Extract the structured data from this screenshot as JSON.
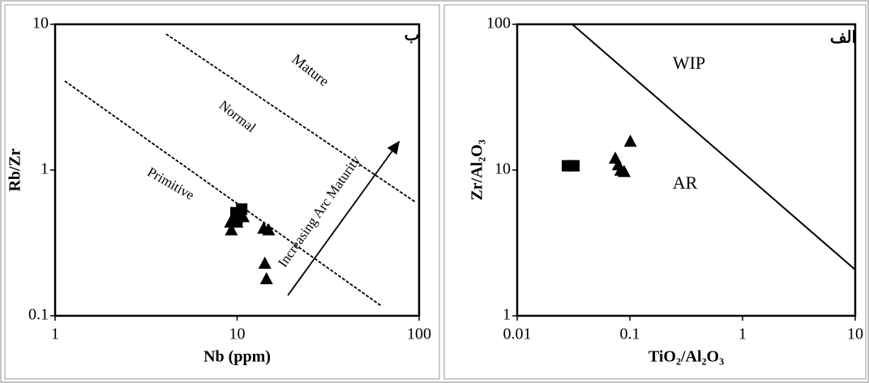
{
  "chart_data": [
    {
      "type": "scatter",
      "panel_label": "ب",
      "xlabel": "Nb (ppm)",
      "ylabel": "Rb/Zr",
      "xlog": true,
      "ylog": true,
      "xlim": [
        1,
        100
      ],
      "ylim": [
        0.1,
        10
      ],
      "xticks": [
        1,
        10,
        100
      ],
      "yticks": [
        0.1,
        1,
        10
      ],
      "series": [
        {
          "marker": "square",
          "color": "#000000",
          "x": [
            9.85,
            10.6,
            10
          ],
          "values": [
            0.51,
            0.54,
            0.46
          ]
        },
        {
          "marker": "triangle",
          "color": "#000000",
          "x": [
            9.2,
            10,
            10.8,
            9.3,
            14,
            14.9,
            14.2,
            14.5
          ],
          "values": [
            0.44,
            0.44,
            0.48,
            0.39,
            0.4,
            0.39,
            0.23,
            0.18
          ]
        }
      ],
      "lines": [
        {
          "style": "dashed",
          "x": [
            4.07,
            96
          ],
          "values": [
            8.58,
            0.6
          ]
        },
        {
          "style": "dashed",
          "x": [
            1.13,
            61.9
          ],
          "values": [
            4.08,
            0.117
          ]
        },
        {
          "style": "arrow",
          "x": [
            19,
            77.4
          ],
          "values": [
            0.138,
            1.56
          ]
        }
      ],
      "annotations": [
        "Mature",
        "Normal",
        "Primitive",
        "Increasing Arc Maturity"
      ]
    },
    {
      "type": "scatter",
      "panel_label": "الف",
      "xlabel": "TiO₂/Al₂O₃",
      "ylabel": "Zr/Al₂O₃",
      "xlog": true,
      "ylog": true,
      "xlim": [
        0.01,
        10
      ],
      "ylim": [
        1,
        100
      ],
      "xticks": [
        0.01,
        0.1,
        1,
        10
      ],
      "yticks": [
        1,
        10,
        100
      ],
      "series": [
        {
          "marker": "square",
          "color": "#000000",
          "x": [
            0.0279,
            0.0319
          ],
          "values": [
            10.7,
            10.7
          ]
        },
        {
          "marker": "triangle",
          "color": "#000000",
          "x": [
            0.0742,
            0.079,
            0.083,
            0.089,
            0.101
          ],
          "values": [
            12.1,
            10.9,
            10,
            9.8,
            15.8
          ]
        }
      ],
      "lines": [
        {
          "style": "solid",
          "x": [
            0.0308,
            10
          ],
          "values": [
            100,
            2.07
          ]
        }
      ],
      "annotations": [
        "WIP",
        "AR"
      ]
    }
  ]
}
